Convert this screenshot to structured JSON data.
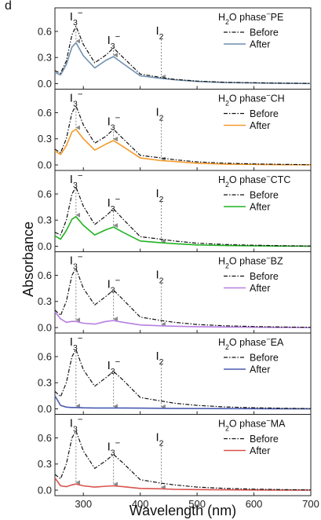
{
  "panel_letter": "d",
  "chart_data": {
    "type": "line",
    "xlabel": "Wavelength (nm)",
    "ylabel": "Absorbance",
    "xlim": [
      250,
      700
    ],
    "x_ticks": [
      300,
      400,
      500,
      600,
      700
    ],
    "legend_position": "top-right",
    "legend_entries": [
      "Before",
      "After"
    ],
    "annotations": [
      {
        "label": "I3-",
        "x": 287
      },
      {
        "label": "I3-",
        "x": 353
      },
      {
        "label": "I2",
        "x": 437
      }
    ],
    "colors": {
      "before": "#111111",
      "arrow": "#8a8a8a",
      "axis": "#222222"
    },
    "panels": [
      {
        "title": "H2O phase-PE",
        "ylim": [
          0,
          0.78
        ],
        "y_ticks": [
          0.0,
          0.3,
          0.6
        ],
        "y_tick_labels": [
          "0.0",
          "0.3",
          "0.6"
        ],
        "after_color": "#6f8faf",
        "x": [
          250,
          260,
          270,
          280,
          287,
          300,
          320,
          340,
          353,
          370,
          400,
          437,
          460,
          500,
          550,
          600,
          650,
          700
        ],
        "series": [
          {
            "name": "Before",
            "values": [
              0.15,
              0.12,
              0.26,
              0.56,
              0.66,
              0.45,
              0.24,
              0.33,
              0.41,
              0.3,
              0.11,
              0.07,
              0.05,
              0.03,
              0.015,
              0.01,
              0.005,
              0.003
            ]
          },
          {
            "name": "After",
            "values": [
              0.13,
              0.1,
              0.22,
              0.42,
              0.47,
              0.32,
              0.18,
              0.27,
              0.31,
              0.23,
              0.09,
              0.06,
              0.045,
              0.025,
              0.013,
              0.008,
              0.004,
              0.002
            ]
          }
        ]
      },
      {
        "title": "H2O phase-CH",
        "ylim": [
          0,
          0.78
        ],
        "y_ticks": [
          0.0,
          0.3,
          0.6
        ],
        "y_tick_labels": [
          "0.0",
          "0.3",
          "0.6"
        ],
        "after_color": "#f39a2b",
        "x": [
          250,
          260,
          270,
          280,
          287,
          300,
          320,
          340,
          353,
          370,
          400,
          437,
          460,
          500,
          550,
          600,
          650,
          700
        ],
        "series": [
          {
            "name": "Before",
            "values": [
              0.18,
              0.14,
              0.3,
              0.6,
              0.68,
              0.46,
              0.25,
              0.33,
              0.41,
              0.3,
              0.11,
              0.08,
              0.06,
              0.035,
              0.02,
              0.012,
              0.006,
              0.003
            ]
          },
          {
            "name": "After",
            "values": [
              0.16,
              0.12,
              0.22,
              0.38,
              0.41,
              0.3,
              0.17,
              0.24,
              0.28,
              0.21,
              0.08,
              0.05,
              0.04,
              0.02,
              0.01,
              0.006,
              0.003,
              0.002
            ]
          }
        ]
      },
      {
        "title": "H2O phase-CTC",
        "ylim": [
          0,
          0.78
        ],
        "y_ticks": [
          0.0,
          0.3,
          0.6
        ],
        "y_tick_labels": [
          "0.0",
          "0.3",
          "0.6"
        ],
        "after_color": "#22b322",
        "x": [
          250,
          260,
          270,
          280,
          287,
          300,
          320,
          340,
          353,
          370,
          400,
          437,
          460,
          500,
          550,
          600,
          650,
          700
        ],
        "series": [
          {
            "name": "Before",
            "values": [
              0.16,
              0.13,
              0.3,
              0.6,
              0.68,
              0.46,
              0.25,
              0.35,
              0.43,
              0.31,
              0.11,
              0.08,
              0.06,
              0.035,
              0.02,
              0.012,
              0.006,
              0.003
            ]
          },
          {
            "name": "After",
            "values": [
              0.12,
              0.08,
              0.18,
              0.31,
              0.34,
              0.24,
              0.13,
              0.19,
              0.22,
              0.16,
              0.06,
              0.04,
              0.03,
              0.015,
              0.008,
              0.005,
              0.002,
              0.001
            ]
          }
        ]
      },
      {
        "title": "H2O phase-BZ",
        "ylim": [
          0,
          0.78
        ],
        "y_ticks": [
          0.0,
          0.3,
          0.6
        ],
        "y_tick_labels": [
          "0.0",
          "0.3",
          "0.6"
        ],
        "after_color": "#b77fe0",
        "x": [
          250,
          260,
          270,
          280,
          287,
          300,
          320,
          340,
          353,
          370,
          400,
          437,
          460,
          500,
          550,
          600,
          650,
          700
        ],
        "series": [
          {
            "name": "Before",
            "values": [
              0.2,
              0.14,
              0.3,
              0.6,
              0.68,
              0.45,
              0.26,
              0.36,
              0.43,
              0.32,
              0.12,
              0.08,
              0.06,
              0.035,
              0.02,
              0.012,
              0.006,
              0.003
            ]
          },
          {
            "name": "After",
            "values": [
              0.18,
              0.1,
              0.06,
              0.07,
              0.07,
              0.05,
              0.04,
              0.07,
              0.08,
              0.06,
              0.03,
              0.02,
              0.015,
              0.01,
              0.006,
              0.004,
              0.002,
              0.001
            ]
          }
        ]
      },
      {
        "title": "H2O phase-EA",
        "ylim": [
          0,
          0.78
        ],
        "y_ticks": [
          0.0,
          0.3,
          0.6
        ],
        "y_tick_labels": [
          "0.0",
          "0.3",
          "0.6"
        ],
        "after_color": "#4a5bb0",
        "x": [
          250,
          260,
          270,
          280,
          287,
          300,
          320,
          340,
          353,
          370,
          400,
          437,
          460,
          500,
          550,
          600,
          650,
          700
        ],
        "series": [
          {
            "name": "Before",
            "values": [
              0.2,
              0.14,
              0.3,
              0.6,
              0.68,
              0.45,
              0.26,
              0.36,
              0.43,
              0.33,
              0.13,
              0.09,
              0.065,
              0.04,
              0.022,
              0.013,
              0.007,
              0.003
            ]
          },
          {
            "name": "After",
            "values": [
              0.15,
              0.04,
              0.02,
              0.015,
              0.015,
              0.012,
              0.01,
              0.01,
              0.01,
              0.01,
              0.008,
              0.006,
              0.005,
              0.004,
              0.003,
              0.002,
              0.001,
              0.001
            ]
          }
        ]
      },
      {
        "title": "H2O phase-MA",
        "ylim": [
          0,
          0.78
        ],
        "y_ticks": [
          0.0,
          0.3,
          0.6
        ],
        "y_tick_labels": [
          "0.0",
          "0.3",
          "0.6"
        ],
        "after_color": "#d9534f",
        "x": [
          250,
          260,
          270,
          280,
          287,
          300,
          320,
          340,
          353,
          370,
          400,
          437,
          460,
          500,
          550,
          600,
          650,
          700
        ],
        "series": [
          {
            "name": "Before",
            "values": [
              0.18,
              0.13,
              0.3,
              0.6,
              0.68,
              0.45,
              0.25,
              0.34,
              0.41,
              0.31,
              0.12,
              0.08,
              0.06,
              0.035,
              0.02,
              0.012,
              0.006,
              0.003
            ]
          },
          {
            "name": "After",
            "values": [
              0.14,
              0.05,
              0.04,
              0.06,
              0.07,
              0.05,
              0.035,
              0.045,
              0.05,
              0.04,
              0.02,
              0.015,
              0.01,
              0.006,
              0.004,
              0.002,
              0.001,
              0.001
            ]
          }
        ]
      }
    ]
  }
}
